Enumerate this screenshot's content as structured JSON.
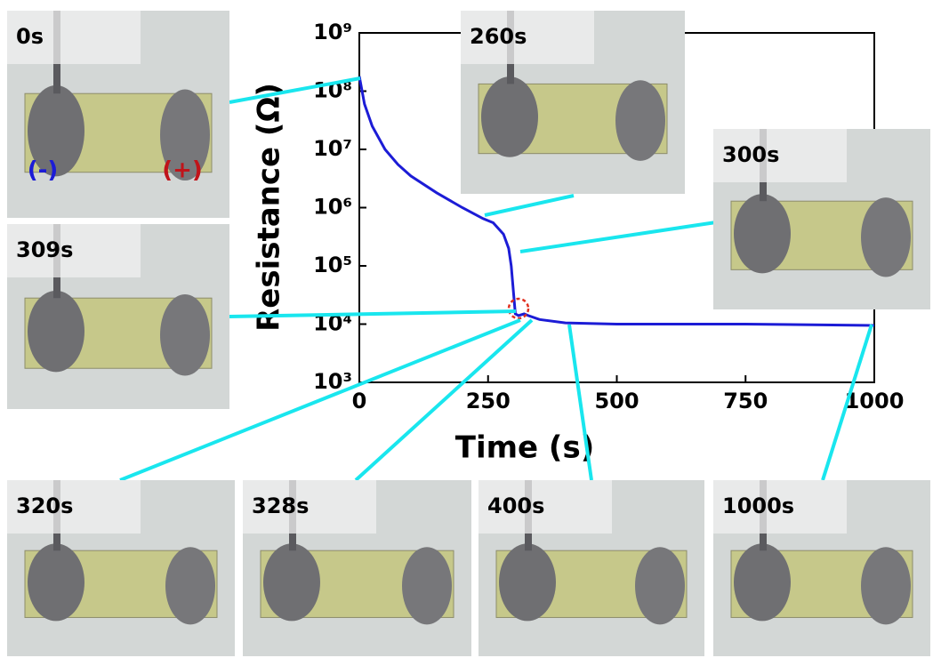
{
  "chart_data": {
    "type": "line",
    "x_label": "Time (s)",
    "y_label": "Resistance (Ω)",
    "x": [
      0,
      10,
      25,
      50,
      75,
      100,
      150,
      200,
      240,
      260,
      280,
      290,
      295,
      300,
      303,
      309,
      320,
      328,
      350,
      400,
      500,
      750,
      1000
    ],
    "values": [
      180000000,
      60000000,
      25000000,
      10000000,
      5500000,
      3500000,
      1800000,
      1000000,
      650000,
      550000,
      350000,
      200000,
      100000,
      30000,
      15000,
      14000,
      15000,
      14000,
      12000,
      10500,
      10000,
      10000,
      9500
    ],
    "color": "#1c1cd6",
    "log_y": true,
    "xlim": [
      0,
      1000
    ],
    "xticks": [
      0,
      250,
      500,
      750,
      1000
    ],
    "ylim": [
      1000,
      1000000000
    ],
    "yticks": [
      {
        "value": 1000,
        "label": "10³"
      },
      {
        "value": 10000,
        "label": "10⁴"
      },
      {
        "value": 100000,
        "label": "10⁵"
      },
      {
        "value": 1000000,
        "label": "10⁶"
      },
      {
        "value": 10000000,
        "label": "10⁷"
      },
      {
        "value": 100000000,
        "label": "10⁸"
      },
      {
        "value": 1000000000,
        "label": "10⁹"
      }
    ],
    "insets": [
      "0s",
      "260s",
      "300s",
      "309s",
      "320s",
      "328s",
      "400s",
      "1000s"
    ],
    "polarity": [
      "(-)",
      "(+)"
    ]
  }
}
